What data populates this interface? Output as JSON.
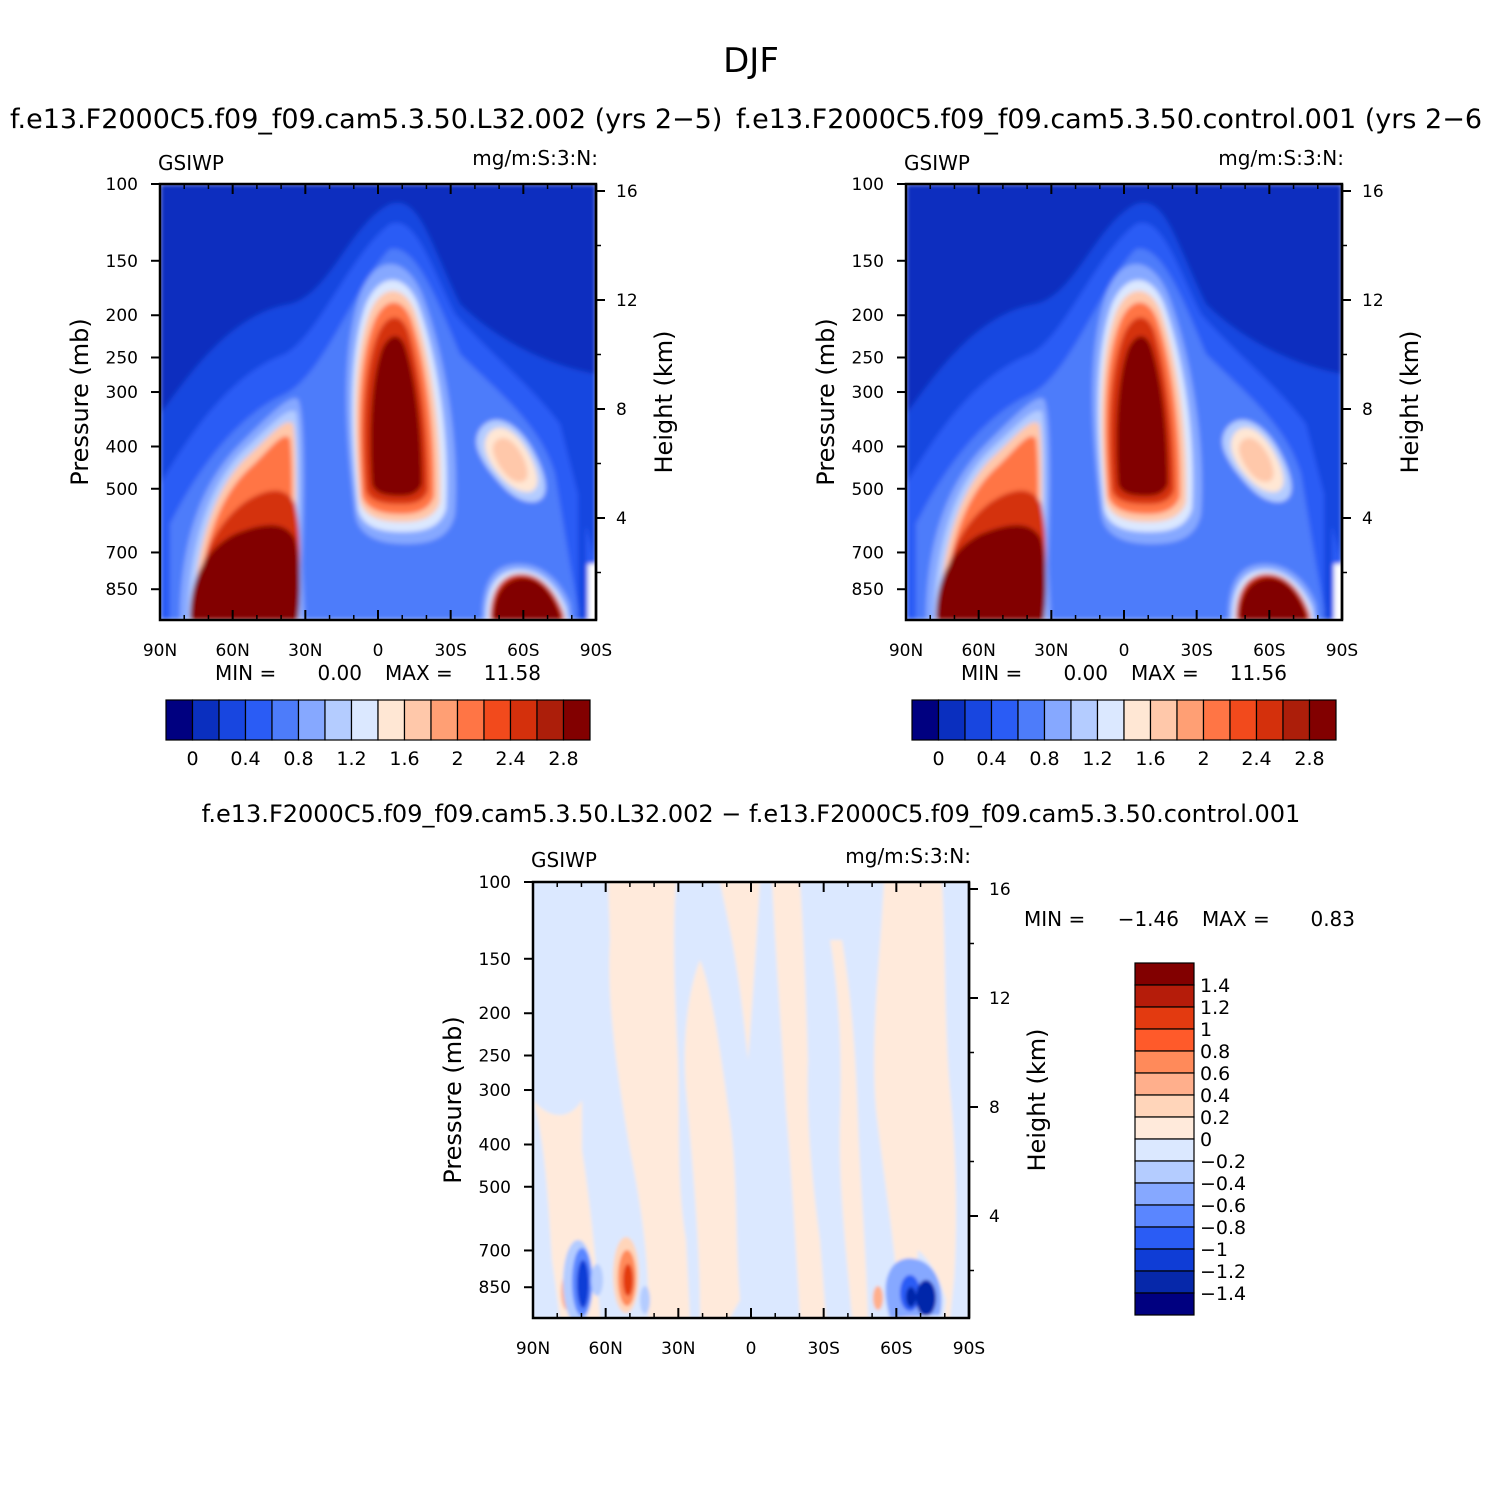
{
  "figure": {
    "title": "DJF"
  },
  "chart_data": [
    {
      "type": "contour",
      "variable": "GSIWP",
      "units": "mg/m:S:3:N:",
      "title": "f.e13.F2000C5.f09_f09.cam5.3.50.L32.002 (yrs 2-5)",
      "title_shown": "f.e13.F2000C5.f09_f09.cam5.3.50.L32.002 (yrs 2−5)",
      "xlabel": "",
      "ylabel": "Pressure (mb)",
      "y2label": "Height (km)",
      "x_ticks": [
        "90N",
        "60N",
        "30N",
        "0",
        "30S",
        "60S",
        "90S"
      ],
      "y_ticks": [
        100,
        150,
        200,
        250,
        300,
        400,
        500,
        700,
        850
      ],
      "y2_ticks": [
        16,
        12,
        8,
        4
      ],
      "min_label": "MIN =",
      "min": "0.00",
      "max_label": "MAX =",
      "max": "11.58",
      "colorbar": {
        "levels": [
          "0",
          "0.4",
          "0.8",
          "1.2",
          "1.6",
          "2",
          "2.4",
          "2.8"
        ],
        "colors": [
          "#000080",
          "#0a2fbf",
          "#1846e0",
          "#2a5cf5",
          "#4d7cfa",
          "#86a8ff",
          "#b4ccff",
          "#dbe8ff",
          "#ffe7d4",
          "#ffc8aa",
          "#ff9f74",
          "#ff7545",
          "#f24a1c",
          "#d4300c",
          "#ac1e0a",
          "#820000"
        ]
      },
      "features": [
        {
          "name": "nh-midlat-low-cloud",
          "lat": 55,
          "plev": 800,
          "peak": ">2.8"
        },
        {
          "name": "tropical-deep-convection",
          "lat": -5,
          "plev": 300,
          "peak": ">2.8"
        },
        {
          "name": "sh-upper-cloud",
          "lat": -45,
          "plev": 420,
          "peak": "1.6"
        },
        {
          "name": "sh-highlat-low-cloud",
          "lat": -65,
          "plev": 820,
          "peak": ">2.8"
        }
      ]
    },
    {
      "type": "contour",
      "variable": "GSIWP",
      "units": "mg/m:S:3:N:",
      "title": "f.e13.F2000C5.f09_f09.cam5.3.50.control.001 (yrs 2-6",
      "title_shown": "f.e13.F2000C5.f09_f09.cam5.3.50.control.001 (yrs 2−6",
      "xlabel": "",
      "ylabel": "Pressure (mb)",
      "y2label": "Height (km)",
      "x_ticks": [
        "90N",
        "60N",
        "30N",
        "0",
        "30S",
        "60S",
        "90S"
      ],
      "y_ticks": [
        100,
        150,
        200,
        250,
        300,
        400,
        500,
        700,
        850
      ],
      "y2_ticks": [
        16,
        12,
        8,
        4
      ],
      "min_label": "MIN =",
      "min": "0.00",
      "max_label": "MAX =",
      "max": "11.56",
      "colorbar": {
        "levels": [
          "0",
          "0.4",
          "0.8",
          "1.2",
          "1.6",
          "2",
          "2.4",
          "2.8"
        ]
      }
    },
    {
      "type": "contour",
      "variable": "GSIWP",
      "units": "mg/m:S:3:N:",
      "title": "f.e13.F2000C5.f09_f09.cam5.3.50.L32.002 - f.e13.F2000C5.f09_f09.cam5.3.50.control.001",
      "title_shown": "f.e13.F2000C5.f09_f09.cam5.3.50.L32.002 − f.e13.F2000C5.f09_f09.cam5.3.50.control.001",
      "xlabel": "",
      "ylabel": "Pressure (mb)",
      "y2label": "Height (km)",
      "x_ticks": [
        "90N",
        "60N",
        "30N",
        "0",
        "30S",
        "60S",
        "90S"
      ],
      "y_ticks": [
        100,
        150,
        200,
        250,
        300,
        400,
        500,
        700,
        850
      ],
      "y2_ticks": [
        16,
        12,
        8,
        4
      ],
      "min_label": "MIN =",
      "min": "−1.46",
      "max_label": "MAX =",
      "max": "0.83",
      "colorbar": {
        "levels": [
          "1.4",
          "1.2",
          "1",
          "0.8",
          "0.6",
          "0.4",
          "0.2",
          "0",
          "−0.2",
          "−0.4",
          "−0.6",
          "−0.8",
          "−1",
          "−1.2",
          "−1.4"
        ],
        "colors": [
          "#820000",
          "#b51c0a",
          "#e33a10",
          "#ff5a2a",
          "#ff8a5a",
          "#ffaf8c",
          "#ffd5ba",
          "#ffeadb",
          "#dbe8ff",
          "#b4ccff",
          "#86a8ff",
          "#5a86ff",
          "#2a5cf5",
          "#0f3dd6",
          "#0628aa",
          "#000080"
        ]
      }
    }
  ]
}
